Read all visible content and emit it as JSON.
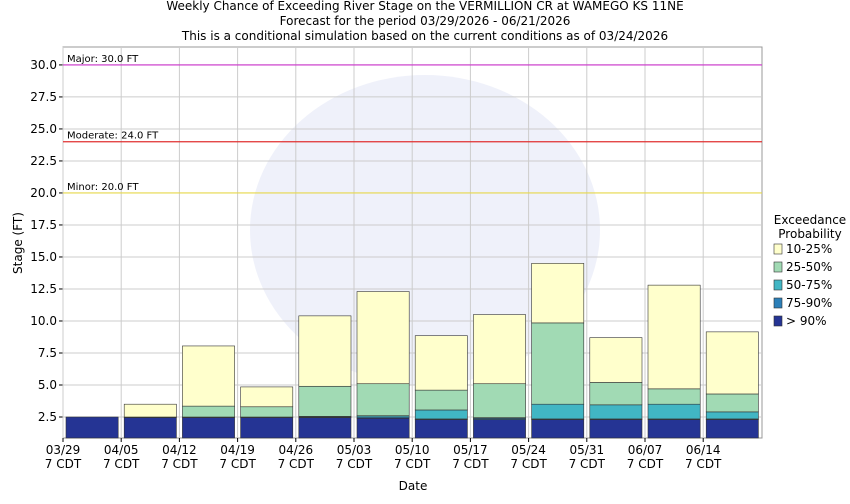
{
  "chart_data": {
    "type": "floating-stacked-bar",
    "title": [
      "Weekly Chance of Exceeding River Stage on the VERMILLION CR at WAMEGO KS 11NE",
      "Forecast for the period 03/29/2026 - 06/21/2026",
      "This is a conditional simulation based on the current conditions as of 03/24/2026"
    ],
    "x_label": "Date",
    "y_label": "Stage (FT)",
    "categories": [
      "03/29",
      "04/05",
      "04/12",
      "04/19",
      "04/26",
      "05/03",
      "05/10",
      "05/17",
      "05/24",
      "05/31",
      "06/07",
      "06/14"
    ],
    "tick_sublabel": "7 CDT",
    "legend_title": [
      "Exceedance",
      "Probability"
    ],
    "series": [
      {
        "name": "> 90%",
        "color": "#253494",
        "values": [
          2.5,
          2.45,
          2.45,
          2.45,
          2.45,
          2.4,
          2.3,
          2.3,
          2.3,
          2.3,
          2.3,
          2.3
        ]
      },
      {
        "name": "75-90%",
        "color": "#2c7fb8",
        "values": [
          2.5,
          2.5,
          2.5,
          2.5,
          2.5,
          2.5,
          2.35,
          2.4,
          2.35,
          2.35,
          2.35,
          2.35
        ]
      },
      {
        "name": "50-75%",
        "color": "#41b6c4",
        "values": [
          2.5,
          2.5,
          2.5,
          2.5,
          2.55,
          2.6,
          3.05,
          2.45,
          3.5,
          3.45,
          3.5,
          2.9
        ]
      },
      {
        "name": "25-50%",
        "color": "#a1dab4",
        "values": [
          2.5,
          2.5,
          3.35,
          3.3,
          4.9,
          5.1,
          4.6,
          5.1,
          9.85,
          5.2,
          4.7,
          4.3
        ]
      },
      {
        "name": "10-25%",
        "color": "#ffffcc",
        "values": [
          2.5,
          3.5,
          8.05,
          4.85,
          10.4,
          12.3,
          8.85,
          10.5,
          14.5,
          8.7,
          12.8,
          9.15
        ]
      }
    ],
    "thresholds": [
      {
        "label": "Major: 30.0 FT",
        "value": 30,
        "color": "#cc33cc"
      },
      {
        "label": "Moderate: 24.0 FT",
        "value": 24,
        "color": "#e03030"
      },
      {
        "label": "Minor: 20.0 FT",
        "value": 20,
        "color": "#e6d84a"
      }
    ],
    "ylim": [
      0.86,
      31.4
    ],
    "yticks": [
      2.5,
      {
        "value": 5,
        "label": "5.0"
      },
      7.5,
      {
        "value": 10,
        "label": "10.0"
      },
      12.5,
      {
        "value": 15,
        "label": "15.0"
      },
      17.5,
      {
        "value": 20,
        "label": "20.0"
      },
      22.5,
      {
        "value": 25,
        "label": "25.0"
      },
      27.5,
      {
        "value": 30,
        "label": "30.0"
      }
    ],
    "grid": true
  }
}
